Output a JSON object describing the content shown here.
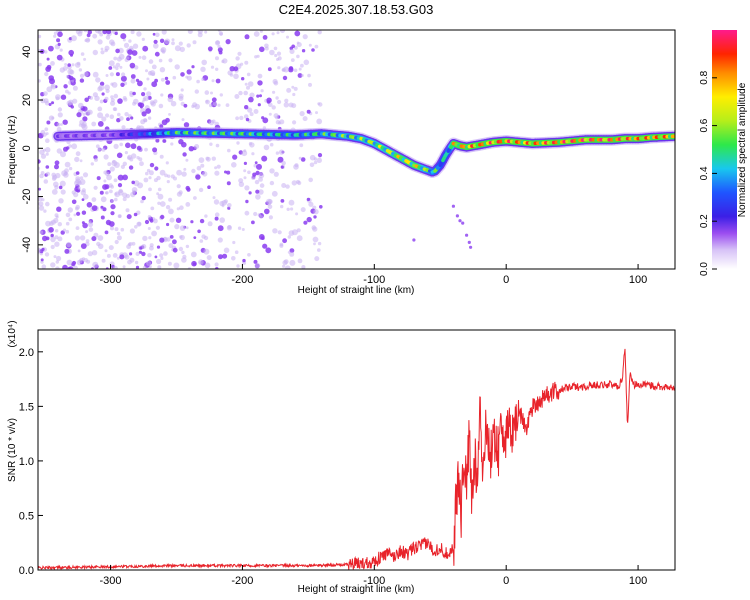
{
  "title": "C2E4.2025.307.18.53.G03",
  "colors": {
    "snr_line": "#e8232a",
    "scatter": "#8a3cf0",
    "axis": "#000000"
  },
  "chart_data": [
    {
      "type": "heatmap",
      "title": "C2E4.2025.307.18.53.G03",
      "xlabel": "Height of straight line (km)",
      "ylabel": "Frequency (Hz)",
      "xlim": [
        -355,
        128
      ],
      "ylim": [
        -50,
        49
      ],
      "xticks": [
        -300,
        -200,
        -100,
        0,
        100
      ],
      "xtick_labels": [
        "-300",
        "-200",
        "-100",
        "0",
        "100"
      ],
      "yticks": [
        -40,
        -20,
        0,
        20,
        40
      ],
      "ytick_labels": [
        "-40",
        "-20",
        "0",
        "20",
        "40"
      ],
      "colorbar": {
        "label": "Normalized spectral amplitude",
        "range": [
          0,
          1
        ],
        "ticks": [
          0.0,
          0.2,
          0.4,
          0.6,
          0.8
        ],
        "tick_labels": [
          "0.0",
          "0.2",
          "0.4",
          "0.6",
          "0.8"
        ],
        "colormap": [
          "#ffffff",
          "#c9b2f5",
          "#8b3ff2",
          "#3b1fe6",
          "#1f55ff",
          "#18c8ee",
          "#2ee84a",
          "#b6ee1a",
          "#ffee00",
          "#ff8c00",
          "#ff2400",
          "#ff1a8c"
        ]
      },
      "ridge": {
        "x": [
          -340,
          -300,
          -270,
          -250,
          -200,
          -160,
          -140,
          -120,
          -110,
          -100,
          -90,
          -80,
          -70,
          -60,
          -55,
          -50,
          -45,
          -40,
          -35,
          -30,
          -20,
          -10,
          0,
          10,
          20,
          40,
          60,
          80,
          90,
          100,
          110,
          128
        ],
        "y": [
          5,
          5.5,
          6,
          6.5,
          6,
          5.5,
          6,
          5,
          4,
          2,
          -1,
          -4,
          -7,
          -9,
          -10,
          -7,
          -2,
          2,
          1,
          0.5,
          1.5,
          2.5,
          3,
          2.5,
          2,
          2.5,
          3.5,
          3.5,
          4,
          4,
          4.5,
          5
        ]
      },
      "ridge_amplitude": [
        0.2,
        0.2,
        0.4,
        0.55,
        0.55,
        0.5,
        0.55,
        0.6,
        0.62,
        0.65,
        0.68,
        0.72,
        0.75,
        0.6,
        0.55,
        0.5,
        0.5,
        0.75,
        0.8,
        0.85,
        0.85,
        0.9,
        0.9,
        0.85,
        0.85,
        0.9,
        0.92,
        0.92,
        0.88,
        0.85,
        0.85,
        0.85
      ]
    },
    {
      "type": "line",
      "xlabel": "Height of straight line (km)",
      "ylabel": "SNR (10 * v/v)",
      "y_multiplier": "(x10⁴)",
      "xlim": [
        -355,
        128
      ],
      "ylim": [
        0,
        2.2
      ],
      "xticks": [
        -300,
        -200,
        -100,
        0,
        100
      ],
      "xtick_labels": [
        "-300",
        "-200",
        "-100",
        "0",
        "100"
      ],
      "yticks": [
        0,
        0.5,
        1,
        1.5,
        2
      ],
      "ytick_labels": [
        "0.0",
        "0.5",
        "1.0",
        "1.5",
        "2.0"
      ],
      "series": [
        {
          "x": [
            -355,
            -300,
            -250,
            -200,
            -150,
            -120,
            -110,
            -100,
            -95,
            -90,
            -85,
            -80,
            -75,
            -70,
            -65,
            -60,
            -55,
            -50,
            -45,
            -40,
            -38,
            -36,
            -34,
            -32,
            -30,
            -28,
            -26,
            -24,
            -22,
            -20,
            -18,
            -16,
            -14,
            -12,
            -10,
            -8,
            -6,
            -4,
            -2,
            0,
            5,
            10,
            15,
            20,
            25,
            30,
            40,
            50,
            60,
            70,
            80,
            85,
            88,
            90,
            92,
            94,
            96,
            100,
            110,
            120,
            128
          ],
          "y": [
            0.02,
            0.03,
            0.04,
            0.04,
            0.04,
            0.05,
            0.06,
            0.08,
            0.12,
            0.15,
            0.12,
            0.18,
            0.14,
            0.2,
            0.22,
            0.25,
            0.18,
            0.2,
            0.15,
            0.2,
            0.6,
            0.9,
            0.5,
            1.1,
            0.8,
            1.2,
            0.6,
            1.0,
            0.9,
            1.55,
            0.9,
            1.2,
            1.3,
            1.05,
            1.1,
            1.3,
            1.05,
            1.35,
            1.3,
            1.2,
            1.3,
            1.45,
            1.3,
            1.5,
            1.55,
            1.6,
            1.65,
            1.68,
            1.68,
            1.7,
            1.7,
            1.68,
            1.75,
            2.05,
            1.3,
            1.85,
            1.7,
            1.7,
            1.69,
            1.68,
            1.66
          ]
        }
      ]
    }
  ]
}
